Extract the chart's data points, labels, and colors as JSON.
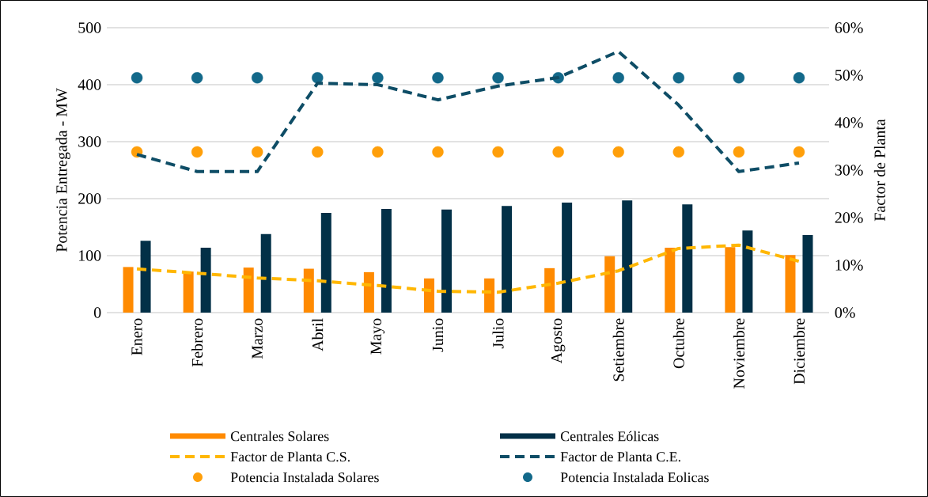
{
  "chart_data": {
    "type": "bar",
    "categories": [
      "Enero",
      "Febrero",
      "Marzo",
      "Abril",
      "Mayo",
      "Junio",
      "Julio",
      "Agosto",
      "Setiembre",
      "Octubre",
      "Noviembre",
      "Diciembre"
    ],
    "ylabel": "Potencia Entregada - MW",
    "y2label": "Factor de Planta",
    "ylim": [
      0,
      500
    ],
    "yticks": [
      0,
      100,
      200,
      300,
      400,
      500
    ],
    "y2lim": [
      0,
      60
    ],
    "y2ticks": [
      {
        "value": 0,
        "label": "0%"
      },
      {
        "value": 10,
        "label": "10%"
      },
      {
        "value": 20,
        "label": "20%"
      },
      {
        "value": 30,
        "label": "30%"
      },
      {
        "value": 40,
        "label": "40%"
      },
      {
        "value": 50,
        "label": "50%"
      },
      {
        "value": 60,
        "label": "60%"
      }
    ],
    "grid": "y",
    "legend": "bottom",
    "series": [
      {
        "name": "Centrales Solares",
        "color": "#ff8a00",
        "values": [
          80,
          72,
          79,
          77,
          71,
          60,
          60,
          78,
          99,
          114,
          115,
          101
        ]
      },
      {
        "name": "Centrales Eólicas",
        "color": "#023047",
        "values": [
          126,
          114,
          138,
          175,
          182,
          181,
          187,
          193,
          197,
          190,
          144,
          136
        ]
      },
      {
        "name": "Factor de Planta C.S.",
        "type": "line",
        "axis": "y2",
        "line_style": "dashed",
        "color": "#ffb703",
        "values": [
          9.2,
          8.3,
          7.3,
          6.7,
          5.7,
          4.5,
          4.3,
          6.2,
          8.8,
          13.5,
          14.2,
          10.8
        ]
      },
      {
        "name": "Factor de Planta C.E.",
        "type": "line",
        "axis": "y2",
        "line_style": "dashed",
        "color": "#0e4d66",
        "values": [
          33.3,
          29.7,
          29.7,
          48.3,
          48,
          44.8,
          47.7,
          49.5,
          55,
          43.7,
          29.7,
          31.5
        ]
      },
      {
        "name": "Potencia Instalada Solares",
        "type": "scatter",
        "marker": "circle",
        "color": "#ff9f0a",
        "values": [
          282,
          282,
          282,
          282,
          282,
          282,
          282,
          282,
          282,
          282,
          282,
          282
        ]
      },
      {
        "name": "Potencia Instalada Eolicas",
        "type": "scatter",
        "marker": "circle",
        "color": "#13698a",
        "values": [
          412,
          412,
          412,
          412,
          412,
          412,
          412,
          412,
          412,
          412,
          412,
          412
        ]
      }
    ]
  }
}
